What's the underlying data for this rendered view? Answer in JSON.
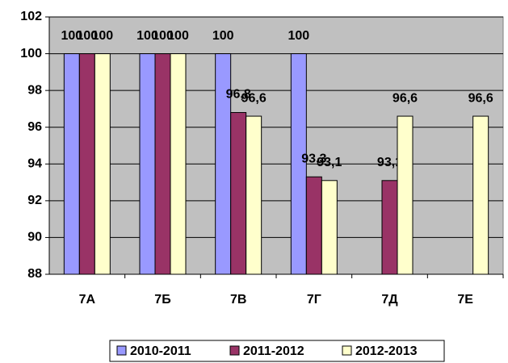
{
  "chart_data": {
    "type": "bar",
    "categories": [
      "7А",
      "7Б",
      "7В",
      "7Г",
      "7Д",
      "7Е"
    ],
    "series": [
      {
        "name": "2010-2011",
        "color": "#9999ff",
        "values": [
          100,
          100,
          100,
          100,
          null,
          null
        ]
      },
      {
        "name": "2011-2012",
        "color": "#993366",
        "values": [
          100,
          100,
          96.8,
          93.3,
          93.1,
          null
        ],
        "value_labels": [
          "100",
          "100",
          "96,8",
          "93,3",
          "93,1",
          null
        ]
      },
      {
        "name": "2012-2013",
        "color": "#ffffcc",
        "values": [
          100,
          100,
          96.6,
          93.1,
          96.6,
          96.6
        ],
        "value_labels": [
          "100",
          "100",
          "96,6",
          "93,1",
          "96,6",
          "96,6"
        ]
      }
    ],
    "ylim": [
      88,
      102
    ],
    "yticks": [
      88,
      90,
      92,
      94,
      96,
      98,
      100,
      102
    ],
    "grid": true,
    "legend": "bottom",
    "plot_background": "#c0c0c0"
  }
}
